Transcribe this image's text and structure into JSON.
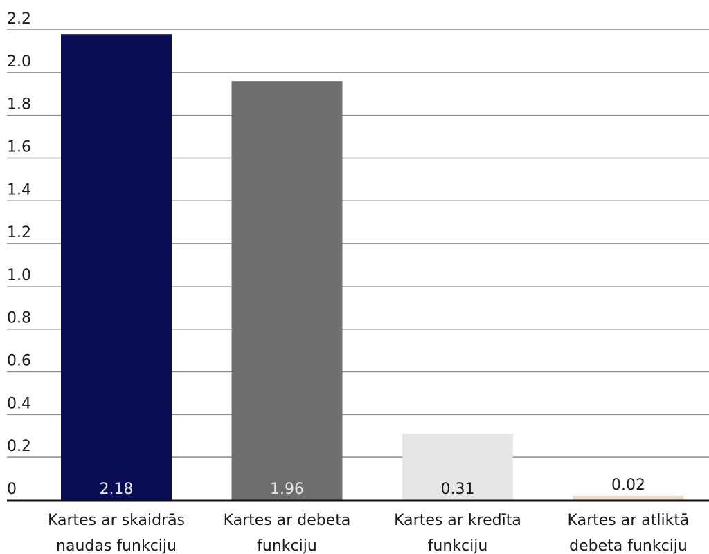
{
  "chart_data": {
    "type": "bar",
    "categories": [
      "Kartes ar skaidrās naudas funkciju",
      "Kartes ar debeta funkciju",
      "Kartes ar kredīta funkciju",
      "Kartes ar atliktā debeta funkciju"
    ],
    "category_lines": [
      [
        "Kartes ar skaidrās",
        "naudas funkciju"
      ],
      [
        "Kartes ar debeta",
        "funkciju"
      ],
      [
        "Kartes ar kredīta",
        "funkciju"
      ],
      [
        "Kartes ar atliktā",
        "debeta funkciju"
      ]
    ],
    "values": [
      2.18,
      1.96,
      0.31,
      0.02
    ],
    "value_labels": [
      "2.18",
      "1.96",
      "0.31",
      "0.02"
    ],
    "colors": [
      "#0a0f55",
      "#6e6e6e",
      "#e6e6e6",
      "#e8dcc4"
    ],
    "value_label_colors": [
      "#e6e6e6",
      "#e6e6e6",
      "#1a1a1a",
      "#1a1a1a"
    ],
    "ylim": [
      0,
      2.2
    ],
    "yticks": [
      0,
      0.2,
      0.4,
      0.6,
      0.8,
      1.0,
      1.2,
      1.4,
      1.6,
      1.8,
      2.0,
      2.2
    ],
    "ytick_labels": [
      "0",
      "0.2",
      "0.4",
      "0.6",
      "0.8",
      "1.0",
      "1.2",
      "1.4",
      "1.6",
      "1.8",
      "2.0",
      "2.2"
    ],
    "title": "",
    "xlabel": "",
    "ylabel": "",
    "grid": true,
    "legend": "none"
  }
}
